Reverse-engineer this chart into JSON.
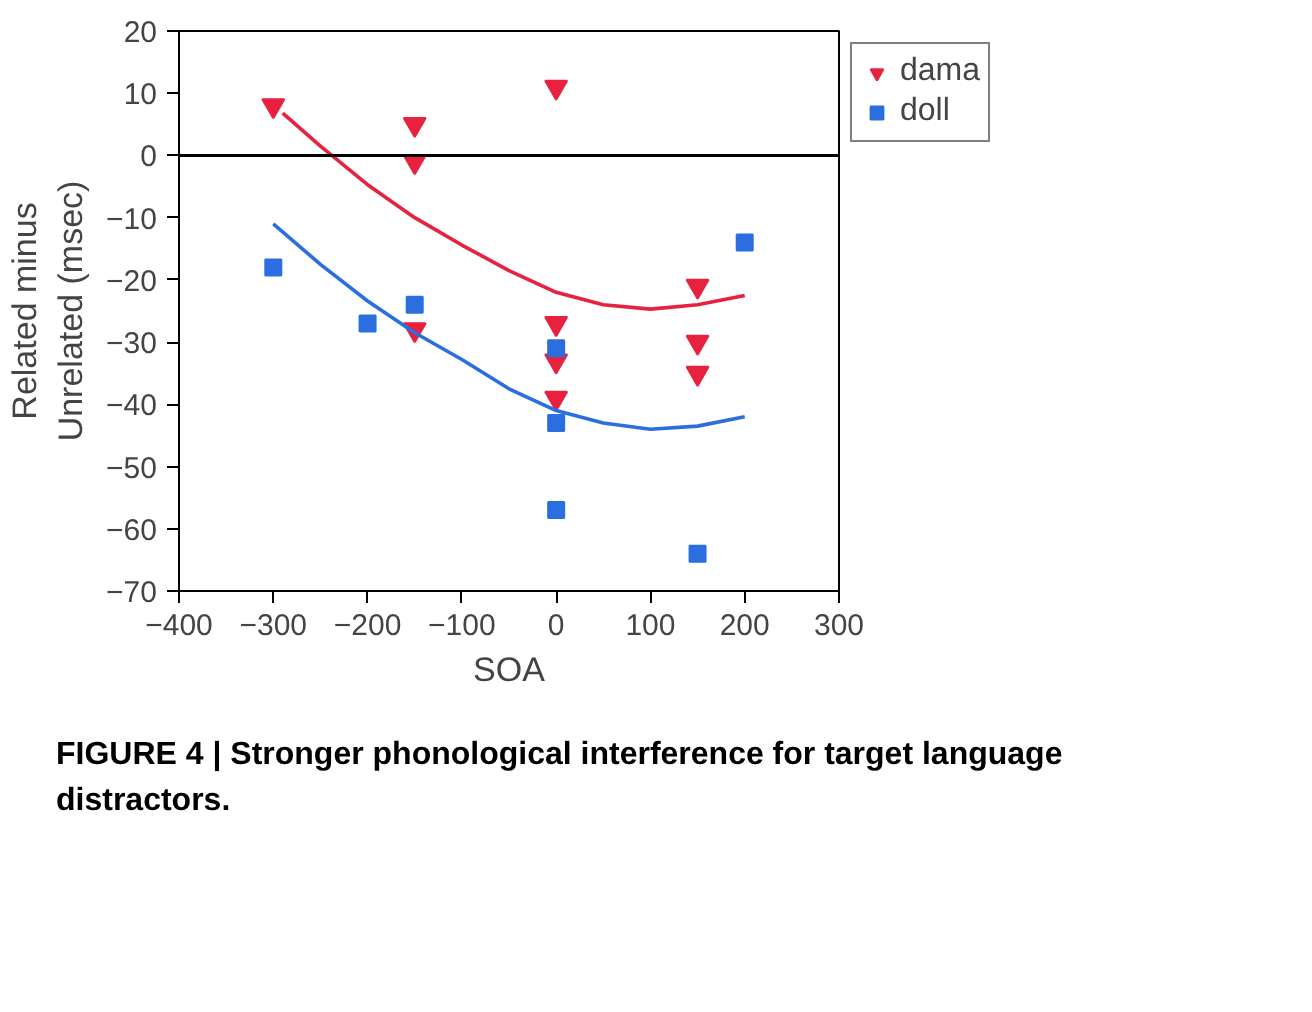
{
  "chart_data": {
    "type": "scatter",
    "xlabel": "SOA",
    "ylabel": "Related minus\nUnrelated (msec)",
    "xlim": [
      -400,
      300
    ],
    "ylim": [
      -70,
      20
    ],
    "xticks": [
      -400,
      -300,
      -200,
      -100,
      0,
      100,
      200,
      300
    ],
    "yticks": [
      -70,
      -60,
      -50,
      -40,
      -30,
      -20,
      -10,
      0,
      10,
      20
    ],
    "grid": false,
    "legend": "top right",
    "series": [
      {
        "name": "dama",
        "color": "#e8213f",
        "marker": "triangle",
        "x": [
          -300,
          -150,
          -150,
          -150,
          0,
          0,
          0,
          0,
          150,
          150,
          150
        ],
        "values": [
          8,
          5,
          -1,
          -28,
          11,
          -27,
          -33,
          -39,
          -21,
          -30,
          -35
        ]
      },
      {
        "name": "doll",
        "color": "#2a6ee0",
        "marker": "square",
        "x": [
          -300,
          -200,
          -150,
          0,
          0,
          0,
          150,
          200
        ],
        "values": [
          -18,
          -27,
          -24,
          -31,
          -43,
          -57,
          -64,
          -14
        ]
      },
      {
        "type": "line",
        "color": "#e8213f",
        "marker": "none",
        "x": [
          -290,
          -250,
          -200,
          -150,
          -100,
          -50,
          0,
          50,
          100,
          150,
          200
        ],
        "values": [
          6.8,
          1.5,
          -4.7,
          -10,
          -14.4,
          -18.5,
          -22,
          -24,
          -24.7,
          -24,
          -22.5
        ]
      },
      {
        "type": "line",
        "color": "#2a6ee0",
        "marker": "none",
        "x": [
          -300,
          -250,
          -200,
          -150,
          -100,
          -50,
          0,
          50,
          100,
          150,
          200
        ],
        "values": [
          -11,
          -17.5,
          -23.4,
          -28.5,
          -32.8,
          -37.5,
          -41,
          -43,
          -44,
          -43.5,
          -42
        ]
      }
    ],
    "ref_lines": [
      {
        "axis": "y",
        "value": 0,
        "color": "#000000"
      }
    ],
    "annotations": [
      "FIGURE 4 | Stronger phonological interference for target language distractors."
    ]
  }
}
